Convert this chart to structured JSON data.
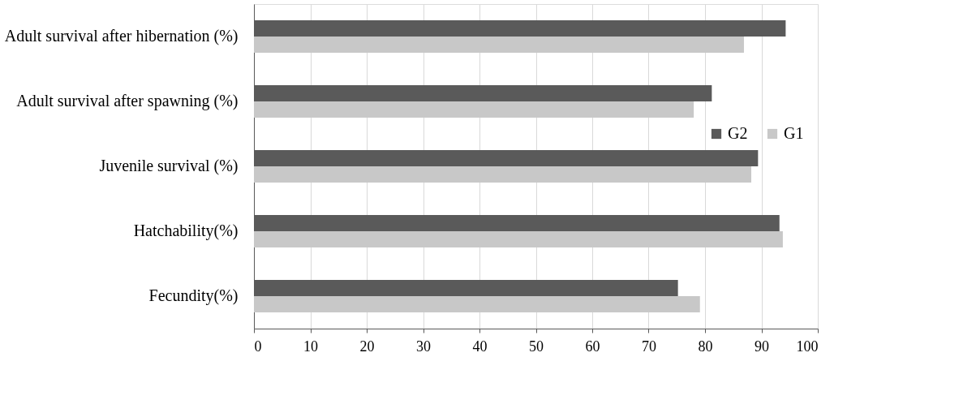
{
  "chart_data": {
    "type": "bar",
    "orientation": "horizontal",
    "categories": [
      "Adult survival after hibernation (%)",
      "Adult survival after spawning (%)",
      "Juvenile survival (%)",
      "Hatchability(%)",
      "Fecundity(%)"
    ],
    "series": [
      {
        "name": "G2",
        "color": "#5a5a5a",
        "values": [
          94.3,
          81.2,
          89.4,
          93.2,
          75.2
        ]
      },
      {
        "name": "G1",
        "color": "#c8c8c8",
        "values": [
          86.9,
          78.0,
          88.2,
          93.8,
          79.1
        ]
      }
    ],
    "xlim": [
      0,
      100
    ],
    "xticks": [
      0,
      10,
      20,
      30,
      40,
      50,
      60,
      70,
      80,
      90,
      100
    ],
    "grid": "x",
    "legend": "right"
  }
}
